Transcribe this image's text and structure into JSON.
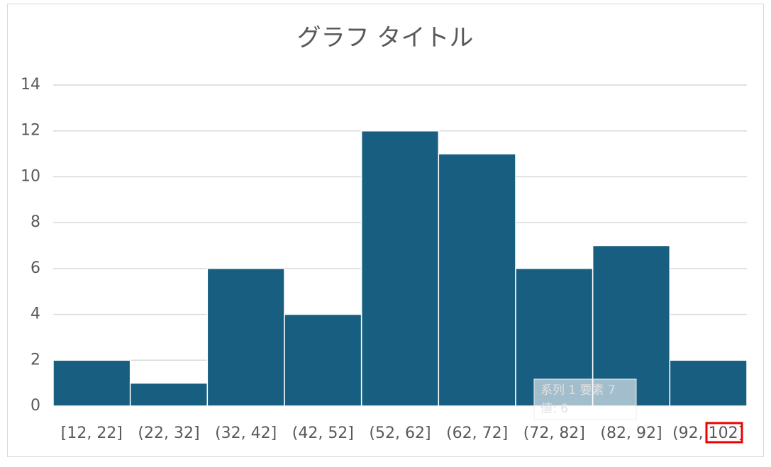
{
  "chart_data": {
    "type": "bar",
    "title": "グラフ タイトル",
    "categories": [
      "[12, 22]",
      "(22, 32]",
      "(32, 42]",
      "(42, 52]",
      "(52, 62]",
      "(62, 72]",
      "(72, 82]",
      "(82, 92]",
      "(92, 102]"
    ],
    "values": [
      2,
      1,
      6,
      4,
      12,
      11,
      6,
      7,
      2
    ],
    "color": "#175e81",
    "ylim": [
      0,
      14
    ],
    "yticks": [
      0,
      2,
      4,
      6,
      8,
      10,
      12,
      14
    ],
    "grid": true,
    "tooltip": [
      "系列 1 要素 7",
      "値: 6"
    ]
  }
}
